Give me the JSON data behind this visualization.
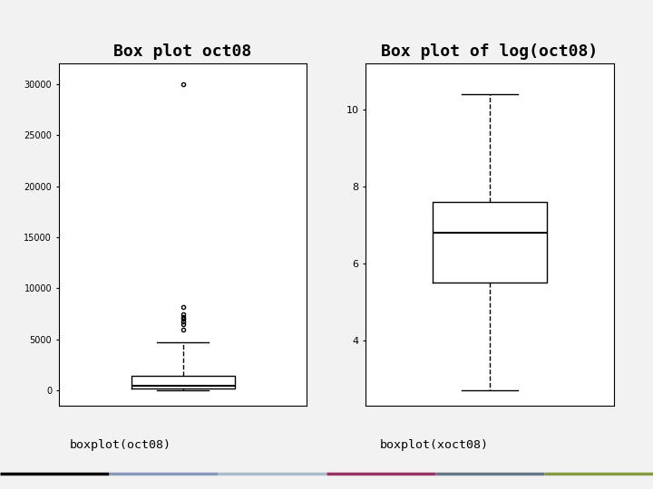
{
  "title_left": "Box plot oct08",
  "title_right": "Box plot of log(oct08)",
  "label_left": "boxplot(oct08)",
  "label_right": "boxplot(xoct08)",
  "left_box": {
    "whislo": 0,
    "q1": 200,
    "med": 450,
    "q3": 1400,
    "whishi": 4700,
    "fliers": [
      6000,
      6500,
      6800,
      7000,
      7200,
      7500,
      8200,
      30000
    ]
  },
  "right_box": {
    "whislo": 2.7,
    "q1": 5.5,
    "med": 6.8,
    "q3": 7.6,
    "whishi": 10.4,
    "fliers": []
  },
  "left_ylim": [
    -1500,
    32000
  ],
  "left_yticks": [
    0,
    5000,
    10000,
    15000,
    20000,
    25000,
    30000
  ],
  "right_ylim": [
    2.3,
    11.2
  ],
  "right_yticks": [
    4,
    6,
    8,
    10
  ],
  "bg_color": "#f2f2f2",
  "plot_bg": "#ffffff",
  "title_fontsize": 13,
  "label_fontsize": 10,
  "line_colors": [
    "#000000",
    "#8899bb",
    "#aaccdd",
    "#994466",
    "#667788",
    "#8899440"
  ],
  "line_colors2": [
    "#000000",
    "#8899bb",
    "#aabbcc",
    "#993366",
    "#667788",
    "#889944"
  ]
}
